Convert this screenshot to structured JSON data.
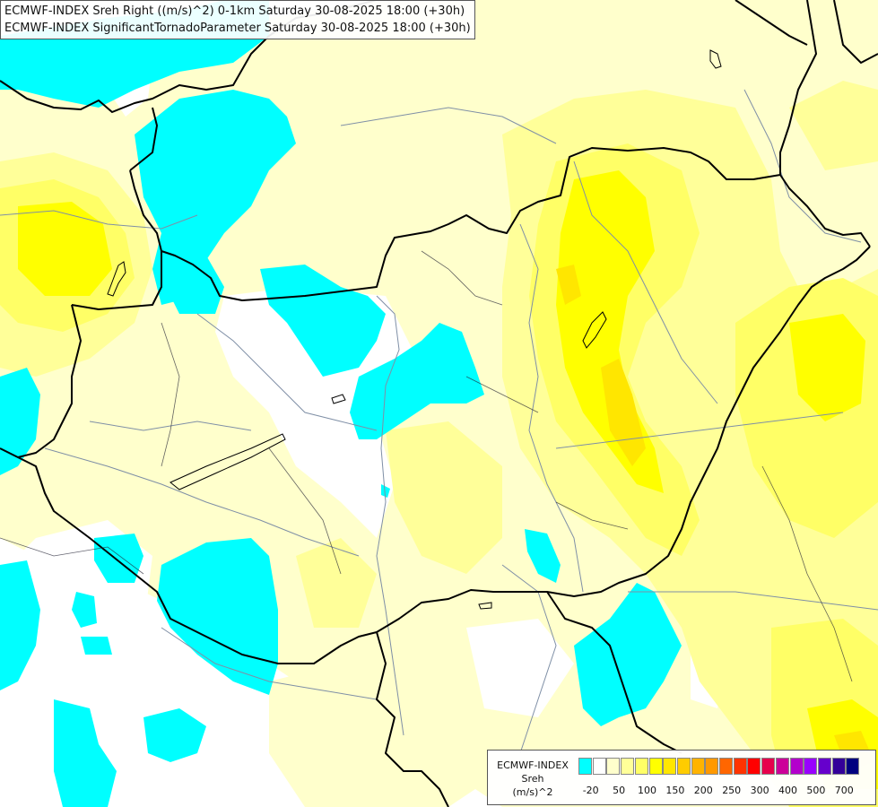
{
  "title": {
    "line1": "ECMWF-INDEX Sreh Right ((m/s)^2) 0-1km Saturday 30-08-2025 18:00 (+30h)",
    "line2": "ECMWF-INDEX SignificantTornadoParameter Saturday 30-08-2025 18:00 (+30h)"
  },
  "legend": {
    "line1": "ECMWF-INDEX",
    "line2": "Sreh",
    "line3": "(m/s)^2",
    "colors": [
      "#00ffff",
      "#ffffff",
      "#ffffcc",
      "#ffff99",
      "#ffff66",
      "#ffff00",
      "#ffe600",
      "#ffcc00",
      "#ffb300",
      "#ff9900",
      "#ff6600",
      "#ff3300",
      "#ff0000",
      "#e6004c",
      "#cc0099",
      "#b300cc",
      "#9900ff",
      "#6600cc",
      "#330099",
      "#000080"
    ],
    "ticks": [
      "-20",
      "50",
      "100",
      "150",
      "200",
      "250",
      "300",
      "400",
      "500",
      "700"
    ]
  },
  "map": {
    "colors": {
      "cyan": "#00ffff",
      "pale_yellow": "#ffffcc",
      "light_yellow": "#ffff99",
      "yellow": "#ffff66",
      "strong_yellow": "#ffff00",
      "gold": "#ffe600",
      "border": "#000000",
      "river": "#7f8fa6"
    }
  }
}
